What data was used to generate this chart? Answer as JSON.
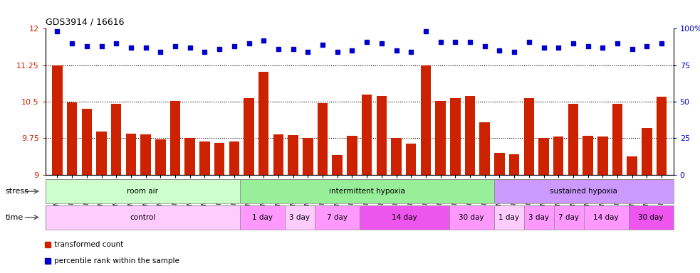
{
  "title": "GDS3914 / 16616",
  "samples": [
    "GSM215660",
    "GSM215661",
    "GSM215662",
    "GSM215663",
    "GSM215664",
    "GSM215665",
    "GSM215666",
    "GSM215667",
    "GSM215668",
    "GSM215669",
    "GSM215670",
    "GSM215671",
    "GSM215672",
    "GSM215673",
    "GSM215674",
    "GSM215675",
    "GSM215676",
    "GSM215677",
    "GSM215678",
    "GSM215679",
    "GSM215680",
    "GSM215681",
    "GSM215682",
    "GSM215683",
    "GSM215684",
    "GSM215685",
    "GSM215686",
    "GSM215687",
    "GSM215688",
    "GSM215689",
    "GSM215690",
    "GSM215691",
    "GSM215692",
    "GSM215693",
    "GSM215694",
    "GSM215695",
    "GSM215696",
    "GSM215697",
    "GSM215698",
    "GSM215699",
    "GSM215700",
    "GSM215701"
  ],
  "bar_values": [
    11.24,
    10.48,
    10.35,
    9.88,
    10.46,
    9.84,
    9.83,
    9.72,
    10.52,
    9.76,
    9.68,
    9.65,
    9.68,
    10.58,
    11.11,
    9.83,
    9.82,
    9.75,
    10.47,
    9.4,
    9.8,
    10.65,
    10.62,
    9.76,
    9.64,
    11.25,
    10.52,
    10.58,
    10.62,
    10.08,
    9.45,
    9.42,
    10.57,
    9.76,
    9.78,
    10.45,
    9.8,
    9.78,
    10.45,
    9.38,
    9.96,
    10.61
  ],
  "percentile_values": [
    98,
    90,
    88,
    88,
    90,
    87,
    87,
    84,
    88,
    87,
    84,
    86,
    88,
    90,
    92,
    86,
    86,
    84,
    89,
    84,
    85,
    91,
    90,
    85,
    84,
    98,
    91,
    91,
    91,
    88,
    85,
    84,
    91,
    87,
    87,
    90,
    88,
    87,
    90,
    86,
    88,
    90
  ],
  "bar_color": "#CC2200",
  "dot_color": "#0000CC",
  "ylim_left": [
    9.0,
    12.0
  ],
  "ylim_right": [
    0,
    100
  ],
  "yticks_left": [
    9.0,
    9.75,
    10.5,
    11.25,
    12.0
  ],
  "yticks_right": [
    0,
    25,
    50,
    75,
    100
  ],
  "hlines": [
    9.75,
    10.5,
    11.25
  ],
  "stress_groups": [
    {
      "label": "room air",
      "start": 0,
      "end": 13,
      "color": "#CCFFCC"
    },
    {
      "label": "intermittent hypoxia",
      "start": 13,
      "end": 30,
      "color": "#99EE99"
    },
    {
      "label": "sustained hypoxia",
      "start": 30,
      "end": 42,
      "color": "#CC99FF"
    }
  ],
  "time_groups": [
    {
      "label": "control",
      "start": 0,
      "end": 13,
      "color": "#FFCCFF"
    },
    {
      "label": "1 day",
      "start": 13,
      "end": 16,
      "color": "#FF99FF"
    },
    {
      "label": "3 day",
      "start": 16,
      "end": 18,
      "color": "#FFCCFF"
    },
    {
      "label": "7 day",
      "start": 18,
      "end": 21,
      "color": "#FF99FF"
    },
    {
      "label": "14 day",
      "start": 21,
      "end": 27,
      "color": "#EE55EE"
    },
    {
      "label": "30 day",
      "start": 27,
      "end": 30,
      "color": "#FF99FF"
    },
    {
      "label": "1 day",
      "start": 30,
      "end": 32,
      "color": "#FFCCFF"
    },
    {
      "label": "3 day",
      "start": 32,
      "end": 34,
      "color": "#FF99FF"
    },
    {
      "label": "7 day",
      "start": 34,
      "end": 36,
      "color": "#FF99FF"
    },
    {
      "label": "14 day",
      "start": 36,
      "end": 39,
      "color": "#FF99FF"
    },
    {
      "label": "30 day",
      "start": 39,
      "end": 42,
      "color": "#EE55EE"
    }
  ]
}
